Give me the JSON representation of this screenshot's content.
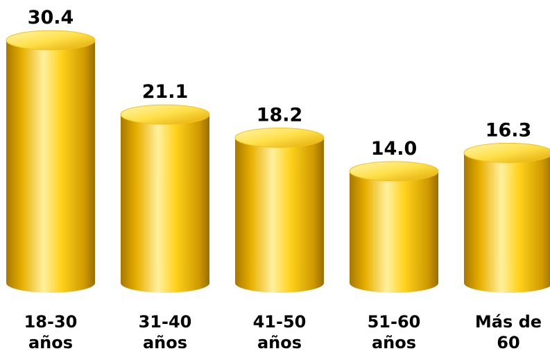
{
  "chart_data": {
    "type": "bar",
    "categories": [
      [
        "18-30",
        "años"
      ],
      [
        "31-40",
        "años"
      ],
      [
        "41-50",
        "años"
      ],
      [
        "51-60",
        "años"
      ],
      [
        "Más de",
        "60"
      ]
    ],
    "values": [
      30.4,
      21.1,
      18.2,
      14.0,
      16.3
    ],
    "value_labels": [
      "30.4",
      "21.1",
      "18.2",
      "14.0",
      "16.3"
    ],
    "ylim": [
      0,
      30.4
    ],
    "grid": false,
    "legend": "none",
    "colors": {
      "bar_light": "#fff3a0",
      "bar_mid": "#ffd21c",
      "bar_dark": "#b88400",
      "bar_top": "#ffe35a"
    }
  }
}
